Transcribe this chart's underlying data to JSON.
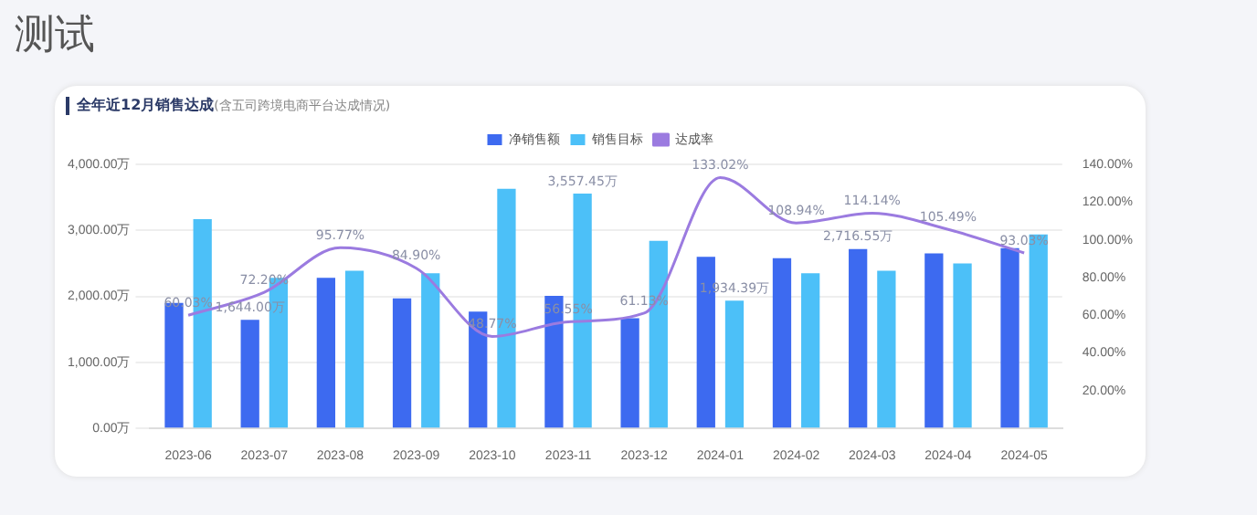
{
  "chart_data": {
    "type": "bar",
    "title": "全年近12月销售达成",
    "subtitle": "(含五司跨境电商平台达成情况)",
    "categories": [
      "2023-06",
      "2023-07",
      "2023-08",
      "2023-09",
      "2023-10",
      "2023-11",
      "2023-12",
      "2024-01",
      "2024-02",
      "2024-03",
      "2024-04",
      "2024-05"
    ],
    "series": [
      {
        "name": "净销售额",
        "color": "#3d6af0",
        "values": [
          1900,
          1644.0,
          2280,
          1970,
          1770,
          2010,
          1670,
          2600,
          2580,
          2716.55,
          2650,
          2730
        ],
        "value_labels": [
          null,
          "1,644.00万",
          null,
          null,
          null,
          null,
          null,
          null,
          null,
          "2,716.55万",
          null,
          null
        ]
      },
      {
        "name": "销售目标",
        "color": "#4cc0f8",
        "values": [
          3170,
          2280,
          2390,
          2350,
          3630,
          3557.45,
          2840,
          1934.39,
          2350,
          2390,
          2500,
          2940
        ],
        "value_labels": [
          null,
          null,
          null,
          null,
          null,
          "3,557.45万",
          null,
          "1,934.39万",
          null,
          null,
          null,
          null
        ]
      },
      {
        "name": "达成率",
        "type": "line",
        "axis": "y2",
        "color": "#9b7be0",
        "marker": "none",
        "values": [
          60.03,
          72.2,
          95.77,
          84.9,
          48.77,
          56.55,
          61.13,
          133.02,
          108.94,
          114.14,
          105.49,
          93.03
        ],
        "value_labels": [
          "60.03%",
          "72.20%",
          "95.77%",
          "84.90%",
          "48.77%",
          "56.55%",
          "61.13%",
          "133.02%",
          "108.94%",
          "114.14%",
          "105.49%",
          "93.03%"
        ]
      }
    ],
    "ylim": [
      0,
      4000
    ],
    "yticks": [
      {
        "value": 0,
        "label": "0.00万"
      },
      {
        "value": 1000,
        "label": "1,000.00万"
      },
      {
        "value": 2000,
        "label": "2,000.00万"
      },
      {
        "value": 3000,
        "label": "3,000.00万"
      },
      {
        "value": 4000,
        "label": "4,000.00万"
      }
    ],
    "y2lim": [
      0,
      140
    ],
    "y2ticks": [
      {
        "value": 0,
        "label": null
      },
      {
        "value": 20,
        "label": "20.00%"
      },
      {
        "value": 40,
        "label": "40.00%"
      },
      {
        "value": 60,
        "label": "60.00%"
      },
      {
        "value": 80,
        "label": "80.00%"
      },
      {
        "value": 100,
        "label": "100.00%"
      },
      {
        "value": 120,
        "label": "120.00%"
      },
      {
        "value": 140,
        "label": "140.00%"
      }
    ],
    "annotations": [
      "测试"
    ],
    "grid": "y",
    "legend": "top"
  }
}
